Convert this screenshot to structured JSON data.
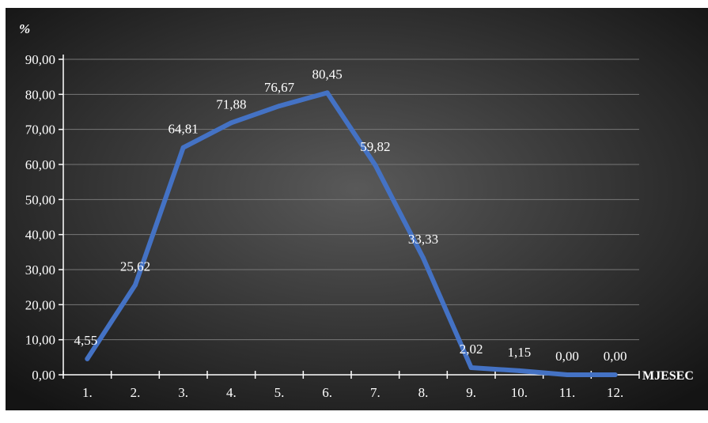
{
  "chart_data": {
    "type": "line",
    "title": "",
    "ylabel": "%",
    "xlabel": "MJESEC",
    "categories": [
      "1.",
      "2.",
      "3.",
      "4.",
      "5.",
      "6.",
      "7.",
      "8.",
      "9.",
      "10.",
      "11.",
      "12."
    ],
    "values": [
      4.55,
      25.62,
      64.81,
      71.88,
      76.67,
      80.45,
      59.82,
      33.33,
      2.02,
      1.15,
      0.0,
      0.0
    ],
    "value_labels": [
      "4,55",
      "25,62",
      "64,81",
      "71,88",
      "76,67",
      "80,45",
      "59,82",
      "33,33",
      "2,02",
      "1,15",
      "0,00",
      "0,00"
    ],
    "y_ticks": [
      "0,00",
      "10,00",
      "20,00",
      "30,00",
      "40,00",
      "50,00",
      "60,00",
      "70,00",
      "80,00",
      "90,00"
    ],
    "ylim": [
      0,
      90
    ],
    "grid": true,
    "colors": {
      "line": "#4472C4",
      "bg_center": "#595959",
      "bg_edge": "#141414",
      "text": "#ffffff",
      "grid": "#777777"
    }
  }
}
